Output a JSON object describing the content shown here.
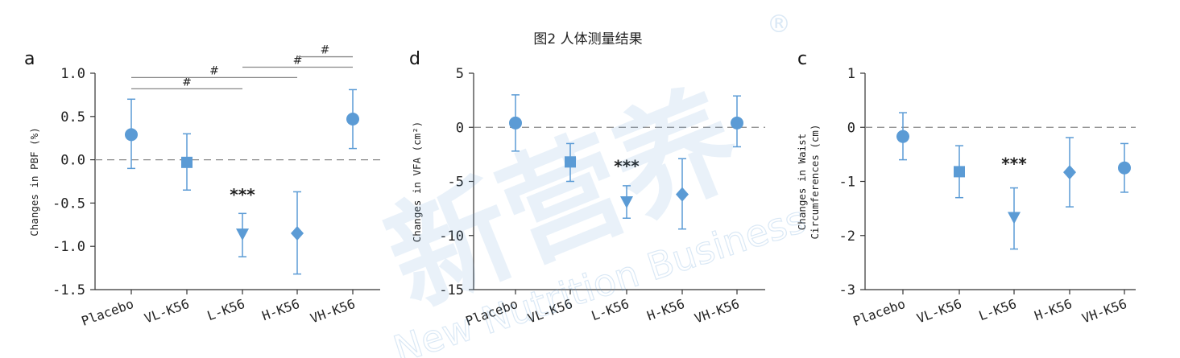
{
  "figure_title": "图2 人体测量结果",
  "watermark": {
    "main": "新营养",
    "sub": "New Nutrition Business",
    "mark": "®"
  },
  "colors": {
    "marker": "#5b9bd5",
    "axis": "#333333",
    "reference_line": "#888888",
    "bracket": "#888888"
  },
  "chart_data": [
    {
      "panel": "a",
      "type": "scatter",
      "error_bars": true,
      "categories": [
        "Placebo",
        "VL-K56",
        "L-K56",
        "H-K56",
        "VH-K56"
      ],
      "markers": [
        "circle",
        "square",
        "triangle-down",
        "diamond",
        "circle"
      ],
      "ylabel": "Changes in PBF (%)",
      "ylim": [
        -1.5,
        1.0
      ],
      "yticks": [
        1.0,
        0.5,
        0.0,
        -0.5,
        -1.0,
        -1.5
      ],
      "ytick_labels": [
        "1.0",
        "0.5",
        "0.0",
        "-0.5",
        "-1.0",
        "-1.5"
      ],
      "values": [
        0.29,
        -0.03,
        -0.86,
        -0.85,
        0.47
      ],
      "err_low": [
        -0.1,
        -0.35,
        -1.12,
        -1.32,
        0.13
      ],
      "err_high": [
        0.7,
        0.3,
        -0.62,
        -0.37,
        0.81
      ],
      "reference_line": 0,
      "significance": [
        {
          "index": 2,
          "label": "***",
          "y": -0.47
        }
      ],
      "brackets": [
        {
          "from": 0,
          "to": 2,
          "label": "#",
          "y": 0.82
        },
        {
          "from": 0,
          "to": 3,
          "label": "#",
          "y": 0.95
        },
        {
          "from": 2,
          "to": 4,
          "label": "#",
          "y": 1.07
        },
        {
          "from": 3,
          "to": 4,
          "label": "#",
          "y": 1.19
        }
      ]
    },
    {
      "panel": "d",
      "type": "scatter",
      "error_bars": true,
      "categories": [
        "Placebo",
        "VL-K56",
        "L-K56",
        "H-K56",
        "VH-K56"
      ],
      "markers": [
        "circle",
        "square",
        "triangle-down",
        "diamond",
        "circle"
      ],
      "ylabel": "Changes in VFA (cm²)",
      "ylim": [
        -15,
        5
      ],
      "yticks": [
        5,
        0,
        -5,
        -10,
        -15
      ],
      "ytick_labels": [
        "5",
        "0",
        "-5",
        "-10",
        "-15"
      ],
      "values": [
        0.4,
        -3.2,
        -6.9,
        -6.2,
        0.4
      ],
      "err_low": [
        -2.2,
        -5.0,
        -8.4,
        -9.4,
        -1.8
      ],
      "err_high": [
        3.0,
        -1.5,
        -5.4,
        -2.9,
        2.9
      ],
      "reference_line": 0,
      "significance": [
        {
          "index": 2,
          "label": "***",
          "y": -4.1
        }
      ],
      "brackets": []
    },
    {
      "panel": "c",
      "type": "scatter",
      "error_bars": true,
      "categories": [
        "Placebo",
        "VL-K56",
        "L-K56",
        "H-K56",
        "VH-K56"
      ],
      "markers": [
        "circle",
        "square",
        "triangle-down",
        "diamond",
        "circle"
      ],
      "ylabel": [
        "Changes in Waist",
        "Circumferences (cm)"
      ],
      "ylim": [
        -3,
        1
      ],
      "yticks": [
        1,
        0,
        -1,
        -2,
        -3
      ],
      "ytick_labels": [
        "1",
        "0",
        "-1",
        "-2",
        "-3"
      ],
      "values": [
        -0.17,
        -0.82,
        -1.67,
        -0.83,
        -0.75
      ],
      "err_low": [
        -0.6,
        -1.3,
        -2.25,
        -1.47,
        -1.2
      ],
      "err_high": [
        0.27,
        -0.34,
        -1.12,
        -0.19,
        -0.3
      ],
      "reference_line": 0,
      "significance": [
        {
          "index": 2,
          "label": "***",
          "y": -0.78
        }
      ],
      "brackets": []
    }
  ]
}
